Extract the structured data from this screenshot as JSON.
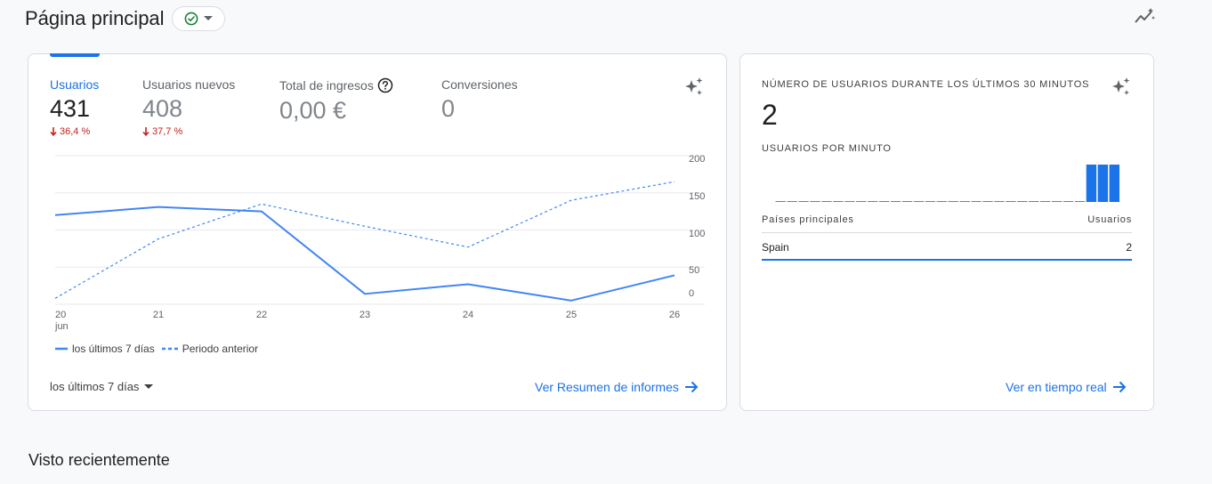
{
  "header": {
    "title": "Página principal",
    "status": "check-circle-icon"
  },
  "overview": {
    "metrics": [
      {
        "label": "Usuarios",
        "value": "431",
        "delta": "36,4 %",
        "active": true
      },
      {
        "label": "Usuarios nuevos",
        "value": "408",
        "delta": "37,7 %"
      },
      {
        "label": "Total de ingresos",
        "value": "0,00 €"
      },
      {
        "label": "Conversiones",
        "value": "0"
      }
    ],
    "legend": {
      "current": "los últimos 7 días",
      "previous": "Periodo anterior"
    },
    "date_range": "los últimos 7 días",
    "link": "Ver Resumen de informes"
  },
  "chart_data": {
    "type": "line",
    "x": [
      "20",
      "21",
      "22",
      "23",
      "24",
      "25",
      "26"
    ],
    "x_month_label": "jun",
    "ylim": [
      0,
      200
    ],
    "y_ticks": [
      "200",
      "150",
      "100",
      "50",
      "0"
    ],
    "series": [
      {
        "name": "los últimos 7 días",
        "style": "solid",
        "values": [
          120,
          131,
          125,
          14,
          27,
          5,
          39
        ]
      },
      {
        "name": "Periodo anterior",
        "style": "dashed",
        "values": [
          8,
          88,
          135,
          105,
          77,
          140,
          165
        ]
      }
    ],
    "color": "#4285f4"
  },
  "realtime": {
    "title": "Número de usuarios durante los últimos 30 minutos",
    "value": "2",
    "per_minute_label": "Usuarios por minuto",
    "per_minute": [
      0,
      0,
      0,
      0,
      0,
      0,
      0,
      0,
      0,
      0,
      0,
      0,
      0,
      0,
      0,
      0,
      0,
      0,
      0,
      0,
      0,
      0,
      0,
      0,
      0,
      0,
      0,
      1,
      1,
      1
    ],
    "countries_header": "Países principales",
    "users_header": "Usuarios",
    "countries": [
      {
        "name": "Spain",
        "users": "2"
      }
    ],
    "link": "Ver en tiempo real"
  },
  "recent": {
    "title": "Visto recientemente"
  },
  "colors": {
    "accent": "#1a73e8",
    "series": "#4285f4",
    "negative": "#c5221f",
    "success": "#188038"
  }
}
